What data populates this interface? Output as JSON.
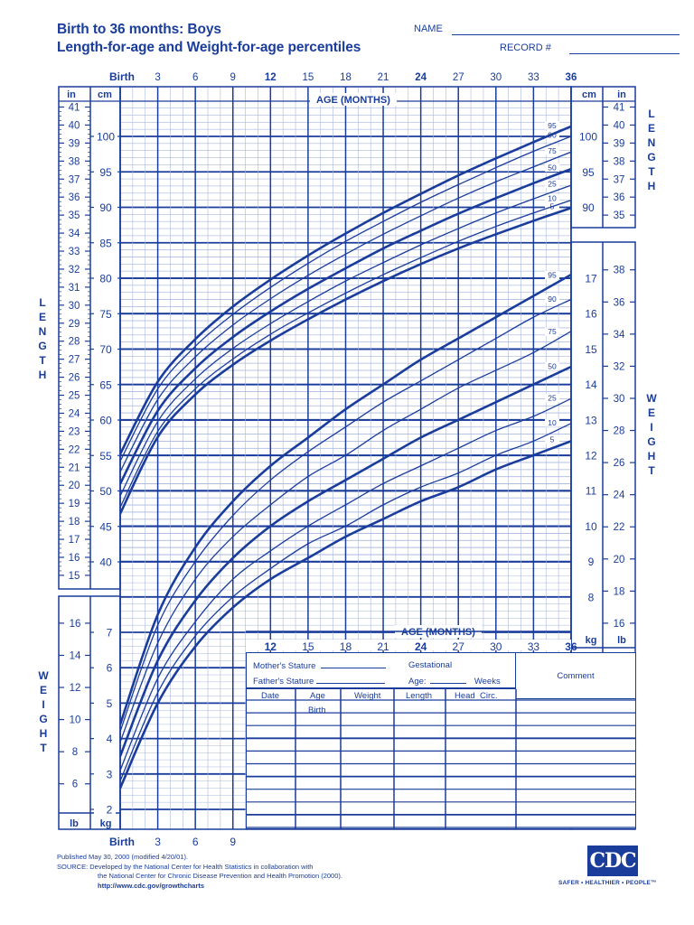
{
  "header": {
    "title_line1": "Birth to 36 months: Boys",
    "title_line2": "Length-for-age and Weight-for-age percentiles",
    "name_label": "NAME",
    "record_label": "RECORD #"
  },
  "axes": {
    "age_title": "AGE (MONTHS)",
    "top_age_ticks": [
      "Birth",
      "3",
      "6",
      "9",
      "12",
      "15",
      "18",
      "21",
      "24",
      "27",
      "30",
      "33",
      "36"
    ],
    "bottom_age_ticks": [
      "Birth",
      "3",
      "6",
      "9"
    ],
    "mid_age_ticks": [
      "12",
      "15",
      "18",
      "21",
      "24",
      "27",
      "30",
      "33",
      "36"
    ],
    "unit_in": "in",
    "unit_cm": "cm",
    "unit_kg": "kg",
    "unit_lb": "lb",
    "side_label_length": "LENGTH",
    "side_label_weight": "WEIGHT"
  },
  "record_table": {
    "mothers_stature": "Mother's Stature",
    "fathers_stature": "Father's Stature",
    "gestational": "Gestational",
    "age_label": "Age:",
    "weeks": "Weeks",
    "comment": "Comment",
    "columns": [
      "Date",
      "Age",
      "Weight",
      "Length",
      "Head  Circ."
    ],
    "first_row_age": "Birth",
    "row_count": 10
  },
  "footer": {
    "published": "Published May 30, 2000 (modified 4/20/01).",
    "source_line1": "SOURCE: Developed by the National Center for Health Statistics in collaboration with",
    "source_line2": "the National Center for Chronic Disease Prevention and Health Promotion (2000).",
    "url": "http://www.cdc.gov/growthcharts",
    "logo_text": "CDC",
    "tagline": "SAFER • HEALTHIER • PEOPLE™"
  },
  "colors": {
    "ink": "#1a3d9c",
    "grid_minor": "#aab8e0",
    "grid_major": "#1a3d9c",
    "background": "#ffffff"
  },
  "chart_data": [
    {
      "type": "line",
      "title": "Length-for-age percentiles, Boys, Birth to 36 months",
      "xlabel": "AGE (MONTHS)",
      "ylabel": "LENGTH (cm / in)",
      "x": [
        0,
        3,
        6,
        9,
        12,
        15,
        18,
        21,
        24,
        27,
        30,
        33,
        36
      ],
      "xlim": [
        0,
        36
      ],
      "ylim_cm": [
        40,
        104
      ],
      "ylim_in": [
        15,
        41
      ],
      "grid": true,
      "legend_position": "inline-right",
      "series": [
        {
          "name": "5",
          "values": [
            46.8,
            57.6,
            63.6,
            67.8,
            71.2,
            74.2,
            77.0,
            79.6,
            82.0,
            84.2,
            86.2,
            88.1,
            89.9
          ]
        },
        {
          "name": "10",
          "values": [
            47.7,
            58.4,
            64.4,
            68.6,
            72.1,
            75.1,
            77.9,
            80.5,
            82.9,
            85.2,
            87.3,
            89.2,
            91.0
          ]
        },
        {
          "name": "25",
          "values": [
            49.3,
            59.8,
            65.8,
            70.1,
            73.6,
            76.7,
            79.6,
            82.2,
            84.7,
            87.0,
            89.2,
            91.2,
            93.1
          ]
        },
        {
          "name": "50",
          "values": [
            51.0,
            61.3,
            67.3,
            71.7,
            75.3,
            78.5,
            81.4,
            84.2,
            86.7,
            89.1,
            91.3,
            93.4,
            95.4
          ]
        },
        {
          "name": "75",
          "values": [
            52.7,
            62.9,
            68.9,
            73.4,
            77.1,
            80.4,
            83.4,
            86.2,
            88.8,
            91.3,
            93.6,
            95.7,
            97.8
          ]
        },
        {
          "name": "90",
          "values": [
            54.2,
            64.4,
            70.4,
            74.9,
            78.7,
            82.1,
            85.2,
            88.0,
            90.7,
            93.2,
            95.6,
            97.9,
            100.0
          ]
        },
        {
          "name": "95",
          "values": [
            55.2,
            65.4,
            71.4,
            76.0,
            79.8,
            83.2,
            86.3,
            89.2,
            91.9,
            94.5,
            96.9,
            99.2,
            101.4
          ]
        }
      ]
    },
    {
      "type": "line",
      "title": "Weight-for-age percentiles, Boys, Birth to 36 months",
      "xlabel": "AGE (MONTHS)",
      "ylabel": "WEIGHT (kg / lb)",
      "x": [
        0,
        3,
        6,
        9,
        12,
        15,
        18,
        21,
        24,
        27,
        30,
        33,
        36
      ],
      "xlim": [
        0,
        36
      ],
      "ylim_kg": [
        1.6,
        17.8
      ],
      "ylim_lb": [
        4,
        39
      ],
      "grid": true,
      "legend_position": "inline-right",
      "series": [
        {
          "name": "5",
          "values": [
            2.6,
            5.0,
            6.6,
            7.7,
            8.5,
            9.1,
            9.7,
            10.2,
            10.7,
            11.1,
            11.6,
            12.0,
            12.4
          ]
        },
        {
          "name": "10",
          "values": [
            2.8,
            5.3,
            6.9,
            8.0,
            8.8,
            9.5,
            10.0,
            10.6,
            11.1,
            11.5,
            12.0,
            12.4,
            12.9
          ]
        },
        {
          "name": "25",
          "values": [
            3.1,
            5.7,
            7.3,
            8.5,
            9.3,
            10.0,
            10.6,
            11.2,
            11.7,
            12.2,
            12.7,
            13.1,
            13.6
          ]
        },
        {
          "name": "50",
          "values": [
            3.5,
            6.2,
            7.9,
            9.1,
            10.0,
            10.7,
            11.3,
            11.9,
            12.5,
            13.0,
            13.5,
            14.0,
            14.5
          ]
        },
        {
          "name": "75",
          "values": [
            3.9,
            6.7,
            8.5,
            9.7,
            10.6,
            11.4,
            12.0,
            12.7,
            13.3,
            13.9,
            14.4,
            14.9,
            15.5
          ]
        },
        {
          "name": "90",
          "values": [
            4.2,
            7.2,
            9.0,
            10.3,
            11.3,
            12.1,
            12.8,
            13.5,
            14.1,
            14.7,
            15.3,
            15.9,
            16.4
          ]
        },
        {
          "name": "95",
          "values": [
            4.4,
            7.5,
            9.4,
            10.7,
            11.7,
            12.5,
            13.3,
            14.0,
            14.7,
            15.3,
            15.9,
            16.5,
            17.1
          ]
        }
      ]
    }
  ]
}
